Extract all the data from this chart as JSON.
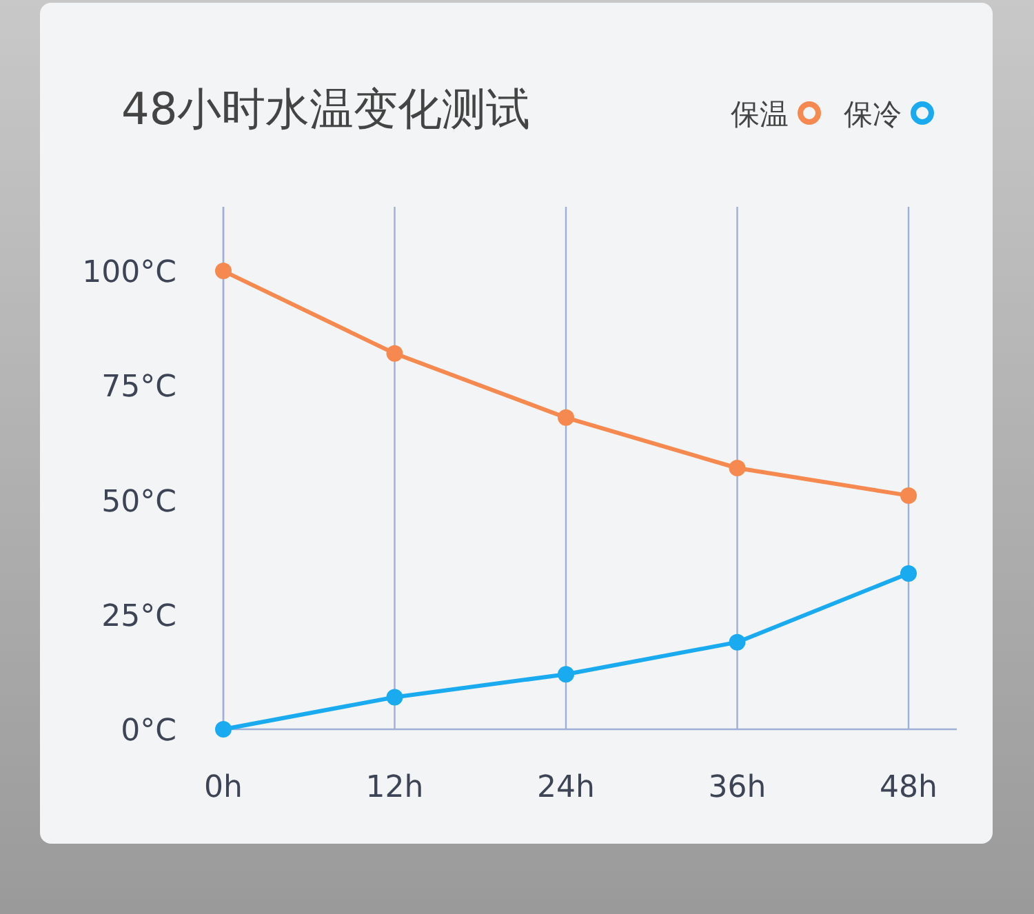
{
  "chart_data": {
    "type": "line",
    "title": "48小时水温变化测试",
    "categories": [
      "0h",
      "12h",
      "24h",
      "36h",
      "48h"
    ],
    "series": [
      {
        "name": "保温",
        "color": "#f5894f",
        "values": [
          100,
          82,
          68,
          57,
          51
        ]
      },
      {
        "name": "保冷",
        "color": "#1aaaf0",
        "values": [
          0,
          7,
          12,
          19,
          34
        ]
      }
    ],
    "ylim": [
      0,
      114
    ],
    "yticks": [
      {
        "value": 0,
        "label": "0°C"
      },
      {
        "value": 25,
        "label": "25°C"
      },
      {
        "value": 50,
        "label": "50°C"
      },
      {
        "value": 75,
        "label": "75°C"
      },
      {
        "value": 100,
        "label": "100°C"
      }
    ],
    "grid": "x",
    "legend": "top right",
    "marker": "circle",
    "line_style": "solid"
  }
}
